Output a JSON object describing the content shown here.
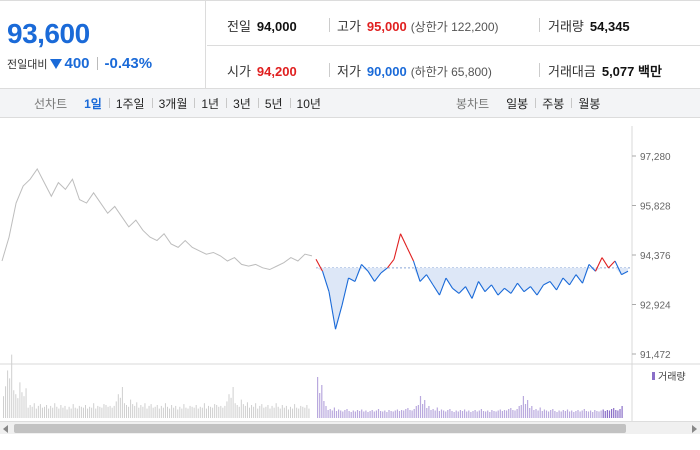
{
  "header": {
    "current_price": "93,600",
    "change_label": "전일대비",
    "change_value": "400",
    "change_percent": "-0.43%",
    "stats": [
      {
        "label": "전일",
        "value": "94,000",
        "color": "black"
      },
      {
        "label": "고가",
        "value": "95,000",
        "color": "red",
        "sub": "(상한가 122,200)"
      },
      {
        "label": "거래량",
        "value": "54,345",
        "color": "black"
      },
      {
        "label": "시가",
        "value": "94,200",
        "color": "red"
      },
      {
        "label": "저가",
        "value": "90,000",
        "color": "blue",
        "sub": "(하한가 65,800)"
      },
      {
        "label": "거래대금",
        "value": "5,077 백만",
        "color": "black"
      }
    ]
  },
  "toolbar": {
    "line_chart_label": "선차트",
    "line_periods": [
      "1일",
      "1주일",
      "3개월",
      "1년",
      "3년",
      "5년",
      "10년"
    ],
    "active_period": "1일",
    "candle_chart_label": "봉차트",
    "candle_periods": [
      "일봉",
      "주봉",
      "월봉"
    ]
  },
  "chart_data": {
    "type": "line",
    "y_ticks": [
      "97,280",
      "95,828",
      "94,376",
      "92,924",
      "91,472"
    ],
    "ylim": [
      91472,
      97280
    ],
    "prev_close": 94000,
    "volume_legend": "거래량",
    "previous_day_series": [
      94200,
      94900,
      95900,
      96400,
      96600,
      96900,
      96500,
      96100,
      96500,
      96300,
      96600,
      96000,
      95900,
      96200,
      95900,
      95600,
      95800,
      95500,
      95200,
      95400,
      95100,
      94900,
      94800,
      95000,
      94700,
      94600,
      94800,
      94600,
      94500,
      94400,
      94450,
      94350,
      94200,
      94300,
      94100,
      94050,
      94100,
      94000,
      93950,
      94050,
      94150,
      94300,
      94200,
      94400,
      94350
    ],
    "today_series": [
      94250,
      93900,
      93300,
      92200,
      92900,
      93700,
      93600,
      94100,
      93900,
      93600,
      93850,
      94000,
      94250,
      95000,
      94600,
      94200,
      93600,
      93800,
      93500,
      93200,
      93700,
      93400,
      93250,
      93450,
      93100,
      93600,
      93300,
      93500,
      93200,
      93400,
      93250,
      93550,
      93300,
      93450,
      93200,
      93500,
      93600,
      93350,
      93700,
      93500,
      93800,
      93550,
      94100,
      93900,
      94300,
      94000,
      94200,
      93800,
      93900
    ]
  },
  "scrollbar": {
    "position": 0
  }
}
